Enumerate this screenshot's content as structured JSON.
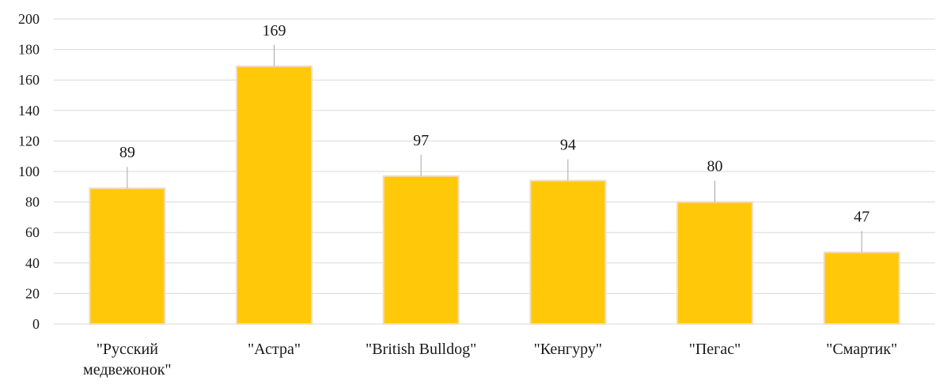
{
  "chart_data": {
    "type": "bar",
    "title": "",
    "xlabel": "",
    "ylabel": "",
    "categories": [
      [
        "\"Русский",
        "медвежонок\""
      ],
      [
        "\"Астра\""
      ],
      [
        "\"British Bulldog\""
      ],
      [
        "\"Кенгуру\""
      ],
      [
        "\"Пегас\""
      ],
      [
        "\"Смартик\""
      ]
    ],
    "values": [
      89,
      169,
      97,
      94,
      80,
      47
    ],
    "data_labels": [
      "89",
      "169",
      "97",
      "94",
      "80",
      "47"
    ],
    "ylim": [
      0,
      200
    ],
    "yticks": [
      0,
      20,
      40,
      60,
      80,
      100,
      120,
      140,
      160,
      180,
      200
    ],
    "ytick_labels": [
      "0",
      "20",
      "40",
      "60",
      "80",
      "100",
      "120",
      "140",
      "160",
      "180",
      "200"
    ],
    "grid": true,
    "legend": "none",
    "colors": {
      "bar": "#FFC90A",
      "bar_edge": "#F2DCC6",
      "grid": "#D9D9D9",
      "leader_line": "#A6A6A6",
      "text": "#1a1a1a"
    }
  }
}
